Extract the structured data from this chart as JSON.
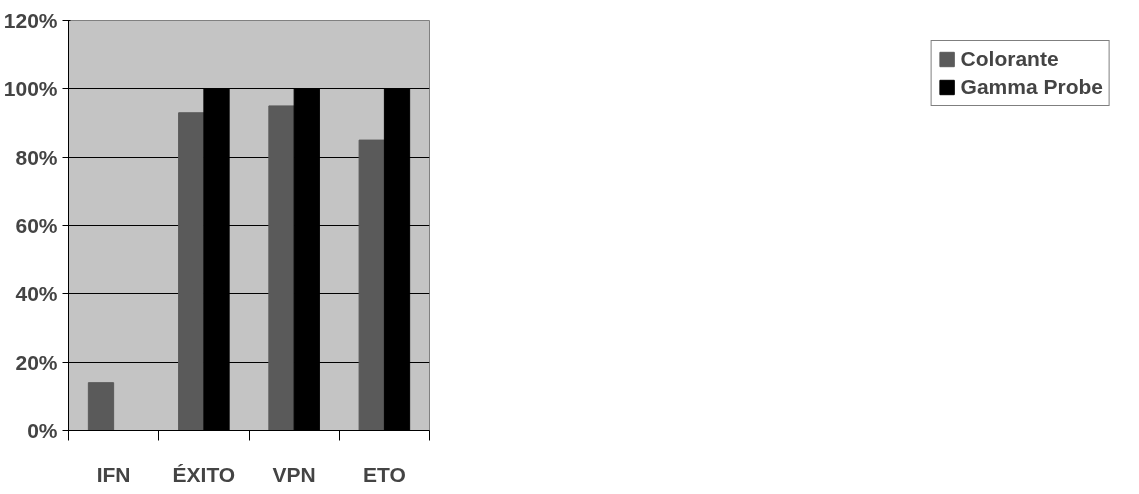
{
  "chart_data": {
    "type": "bar",
    "categories": [
      "IFN",
      "ÉXITO",
      "VPN",
      "ETO"
    ],
    "series": [
      {
        "name": "Colorante",
        "color": "#5a5a5a",
        "values": [
          14,
          93,
          95,
          85
        ]
      },
      {
        "name": "Gamma Probe",
        "color": "#000000",
        "values": [
          0,
          100,
          100,
          100
        ]
      }
    ],
    "ylim": [
      0,
      120
    ],
    "yticks": [
      {
        "value": 0,
        "label": "0%"
      },
      {
        "value": 20,
        "label": "20%"
      },
      {
        "value": 40,
        "label": "40%"
      },
      {
        "value": 60,
        "label": "60%"
      },
      {
        "value": 80,
        "label": "80%"
      },
      {
        "value": 100,
        "label": "100%"
      },
      {
        "value": 120,
        "label": "120%"
      }
    ],
    "grid": "y",
    "legend": "right"
  }
}
